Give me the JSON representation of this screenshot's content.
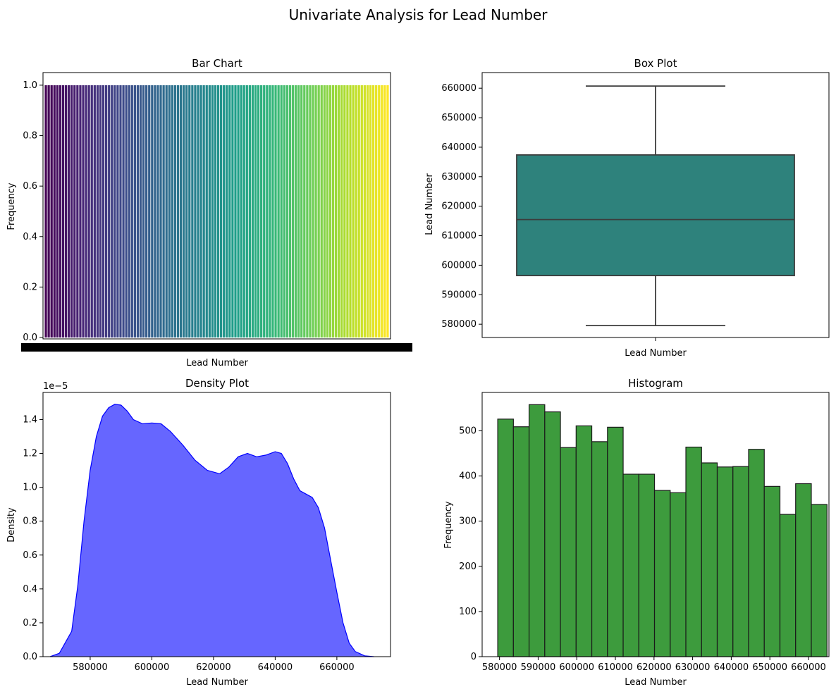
{
  "figure": {
    "suptitle": "Univariate Analysis for Lead Number"
  },
  "chart_data": [
    {
      "id": "bar",
      "type": "bar",
      "title": "Bar Chart",
      "xlabel": "Lead Number",
      "ylabel": "Frequency",
      "yticks": [
        "0.0",
        "0.2",
        "0.4",
        "0.6",
        "0.8",
        "1.0"
      ],
      "ylim": [
        0,
        1.05
      ],
      "bar_count": 120,
      "bar_value": 1.0,
      "colormap": "viridis",
      "x_tick_labels_overlapping": true
    },
    {
      "id": "box",
      "type": "box",
      "title": "Box Plot",
      "xlabel": "Lead Number",
      "ylabel": "Lead Number",
      "ylim": [
        575500,
        665300
      ],
      "yticks": [
        "580000",
        "590000",
        "600000",
        "610000",
        "620000",
        "630000",
        "640000",
        "650000",
        "660000"
      ],
      "whisker_low": 579533,
      "q1": 596485,
      "median": 615479,
      "q3": 637387,
      "whisker_high": 660737,
      "color": "#2e827c"
    },
    {
      "id": "density",
      "type": "area",
      "title": "Density Plot",
      "xlabel": "Lead Number",
      "ylabel": "Density",
      "offset_text": "1e−5",
      "xlim": [
        564700,
        677400
      ],
      "ylim": [
        0,
        1.56
      ],
      "xticks": [
        "580000",
        "600000",
        "620000",
        "640000",
        "660000"
      ],
      "yticks": [
        "0.0",
        "0.2",
        "0.4",
        "0.6",
        "0.8",
        "1.0",
        "1.2",
        "1.4"
      ],
      "x": [
        567000,
        570000,
        574000,
        576000,
        578000,
        580000,
        582000,
        584000,
        586000,
        588000,
        590000,
        592000,
        594000,
        597000,
        600000,
        603000,
        606000,
        610000,
        614000,
        618000,
        622000,
        625000,
        628000,
        631000,
        634000,
        637000,
        640000,
        642000,
        644000,
        646000,
        648000,
        650000,
        652000,
        654000,
        656000,
        658000,
        660000,
        662000,
        664000,
        666000,
        669000,
        672000
      ],
      "y": [
        0.0,
        0.02,
        0.15,
        0.42,
        0.8,
        1.1,
        1.3,
        1.42,
        1.47,
        1.49,
        1.485,
        1.45,
        1.4,
        1.375,
        1.38,
        1.375,
        1.33,
        1.25,
        1.16,
        1.1,
        1.08,
        1.12,
        1.18,
        1.2,
        1.18,
        1.19,
        1.21,
        1.2,
        1.14,
        1.05,
        0.98,
        0.96,
        0.94,
        0.88,
        0.76,
        0.57,
        0.38,
        0.2,
        0.08,
        0.03,
        0.005,
        0.0
      ],
      "fill_color": "#6666ff",
      "line_color": "#0000ff"
    },
    {
      "id": "hist",
      "type": "bar",
      "title": "Histogram",
      "xlabel": "Lead Number",
      "ylabel": "Frequency",
      "xlim": [
        575500,
        665300
      ],
      "ylim": [
        0,
        585
      ],
      "xticks": [
        "580000",
        "590000",
        "600000",
        "610000",
        "620000",
        "630000",
        "640000",
        "650000",
        "660000"
      ],
      "yticks": [
        "0",
        "100",
        "200",
        "300",
        "400",
        "500"
      ],
      "bin_start": 579533,
      "bin_width": 4060,
      "values": [
        526,
        509,
        558,
        542,
        463,
        511,
        476,
        508,
        404,
        404,
        368,
        363,
        464,
        429,
        420,
        421,
        459,
        377,
        315,
        383,
        337
      ],
      "color": "#3d9b3d"
    }
  ]
}
